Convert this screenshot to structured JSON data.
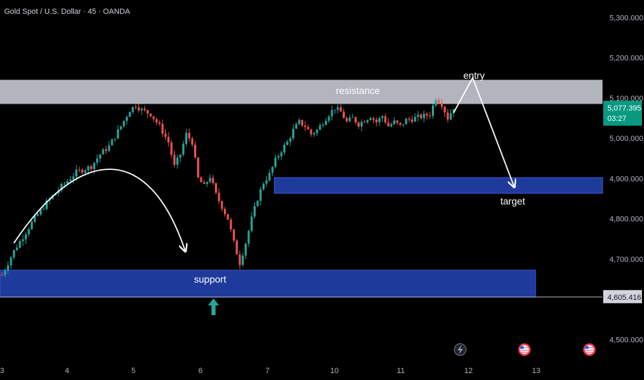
{
  "header": {
    "title": "Gold Spot / U.S. Dollar · 45 · OANDA"
  },
  "colors": {
    "background": "#000000",
    "up": "#26a69a",
    "down": "#ef5350",
    "resistance_zone": "#b2b5be",
    "zone_fill": "#1e3a9a",
    "current_price_tag": "#089981",
    "arrow": "#ffffff"
  },
  "price_scale": {
    "labels": [
      "5,300.000",
      "5,200.000",
      "5,100.000",
      "5,000.000",
      "4,900.000",
      "4,800.000",
      "4,700.000",
      "4,500.000"
    ],
    "current_price": "5,077.395",
    "countdown": "03:27",
    "marked_price": "4,605.416"
  },
  "time_axis": {
    "labels": [
      "3",
      "4",
      "5",
      "6",
      "7",
      "10",
      "11",
      "12",
      "13"
    ]
  },
  "annotations": {
    "resistance": "resistance",
    "support": "support",
    "entry": "entry",
    "target": "target"
  },
  "event_icons": [
    "lightning-icon",
    "us-flag-icon",
    "us-flag-icon"
  ],
  "chart_data": {
    "type": "candlestick",
    "symbol": "Gold Spot / U.S. Dollar",
    "interval": "45",
    "source": "OANDA",
    "x_ticks": [
      "3",
      "4",
      "5",
      "6",
      "7",
      "10",
      "11",
      "12",
      "13"
    ],
    "ylim": [
      4450,
      5320
    ],
    "price_labels": [
      5300,
      5200,
      5100,
      5000,
      4900,
      4800,
      4700,
      4500
    ],
    "grid": false,
    "close_path": [
      [
        0,
        4660
      ],
      [
        4,
        4720
      ],
      [
        10,
        4790
      ],
      [
        15,
        4840
      ],
      [
        20,
        4880
      ],
      [
        25,
        4915
      ],
      [
        30,
        4930
      ],
      [
        33,
        4960
      ],
      [
        36,
        4980
      ],
      [
        40,
        5030
      ],
      [
        43,
        5070
      ],
      [
        45,
        5082
      ],
      [
        47,
        5070
      ],
      [
        50,
        5060
      ],
      [
        53,
        5030
      ],
      [
        56,
        4990
      ],
      [
        58,
        4930
      ],
      [
        60,
        4960
      ],
      [
        62,
        5010
      ],
      [
        64,
        4990
      ],
      [
        66,
        4900
      ],
      [
        68,
        4880
      ],
      [
        70,
        4905
      ],
      [
        72,
        4860
      ],
      [
        74,
        4830
      ],
      [
        76,
        4800
      ],
      [
        78,
        4740
      ],
      [
        80,
        4690
      ],
      [
        82,
        4740
      ],
      [
        84,
        4800
      ],
      [
        86,
        4850
      ],
      [
        88,
        4890
      ],
      [
        90,
        4910
      ],
      [
        92,
        4945
      ],
      [
        94,
        4970
      ],
      [
        96,
        4990
      ],
      [
        98,
        5020
      ],
      [
        100,
        5040
      ],
      [
        102,
        5030
      ],
      [
        104,
        5010
      ],
      [
        106,
        5020
      ],
      [
        108,
        5040
      ],
      [
        110,
        5060
      ],
      [
        112,
        5075
      ],
      [
        114,
        5065
      ],
      [
        116,
        5040
      ],
      [
        118,
        5050
      ],
      [
        120,
        5035
      ],
      [
        122,
        5045
      ],
      [
        124,
        5055
      ],
      [
        126,
        5040
      ],
      [
        128,
        5055
      ],
      [
        130,
        5030
      ],
      [
        132,
        5040
      ],
      [
        134,
        5030
      ],
      [
        136,
        5045
      ],
      [
        138,
        5048
      ],
      [
        140,
        5052
      ],
      [
        142,
        5055
      ],
      [
        144,
        5060
      ],
      [
        146,
        5100
      ],
      [
        148,
        5085
      ],
      [
        150,
        5050
      ],
      [
        152,
        5077
      ]
    ],
    "zones": [
      {
        "label": "resistance",
        "from": 5085,
        "to": 5145
      },
      {
        "label": "",
        "from": 4863,
        "to": 4902
      },
      {
        "label": "support",
        "from": 4605,
        "to": 4672
      }
    ],
    "last_price": 5077.395,
    "marked_level": 4605.416,
    "projection": {
      "entry": 5133,
      "target": 4880
    }
  }
}
